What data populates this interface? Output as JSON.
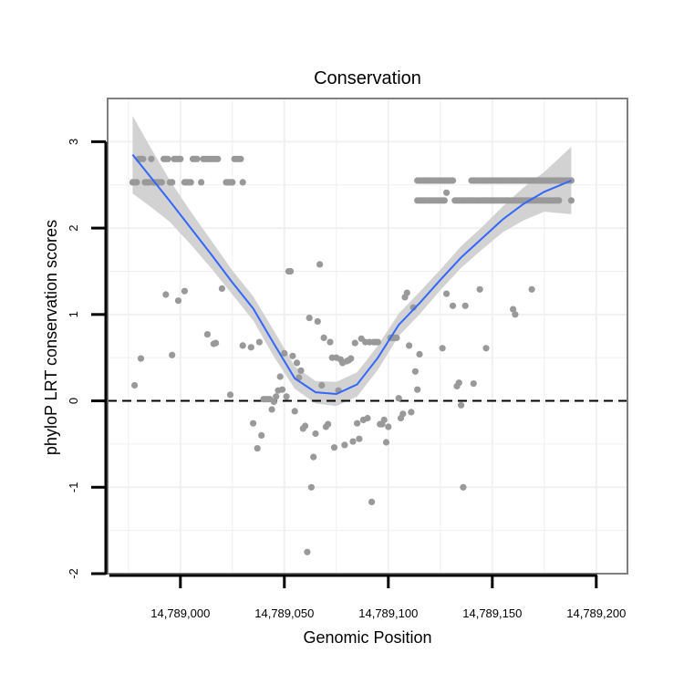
{
  "chart_data": {
    "type": "scatter",
    "title": "Conservation",
    "xlabel": "Genomic Position",
    "ylabel": "phyloP LRT conservation scores",
    "xlim": [
      14788965,
      14789215
    ],
    "ylim": [
      -2,
      3.5
    ],
    "xticks": [
      14789000,
      14789050,
      14789100,
      14789150,
      14789200
    ],
    "xtick_labels": [
      "14,789,000",
      "14,789,050",
      "14,789,100",
      "14,789,150",
      "14,789,200"
    ],
    "yticks": [
      -2,
      -1,
      0,
      1,
      2,
      3
    ],
    "ytick_labels": [
      "-2",
      "-1",
      "0",
      "1",
      "2",
      "3"
    ],
    "reference_line": {
      "y": 0,
      "style": "dashed"
    },
    "colors": {
      "points": "#999999",
      "smooth_line": "#3366ff",
      "ribbon": "#d2d2d2",
      "grid": "#f0f0f0",
      "panel_border": "#7f7f7f",
      "reference_line": "#000000"
    },
    "points": [
      [
        14788977,
        2.53
      ],
      [
        14788978,
        2.53
      ],
      [
        14788979,
        2.53
      ],
      [
        14788980,
        2.8
      ],
      [
        14788981,
        2.8
      ],
      [
        14788982,
        2.8
      ],
      [
        14788983,
        2.53
      ],
      [
        14788984,
        2.53
      ],
      [
        14788985,
        2.53
      ],
      [
        14788986,
        2.8
      ],
      [
        14788987,
        2.53
      ],
      [
        14788988,
        2.53
      ],
      [
        14788989,
        2.53
      ],
      [
        14788990,
        2.53
      ],
      [
        14788991,
        2.53
      ],
      [
        14788992,
        2.8
      ],
      [
        14788993,
        2.8
      ],
      [
        14788994,
        2.8
      ],
      [
        14788995,
        2.53
      ],
      [
        14788996,
        2.53
      ],
      [
        14788997,
        2.8
      ],
      [
        14788998,
        2.8
      ],
      [
        14788999,
        2.8
      ],
      [
        14789000,
        2.8
      ],
      [
        14789002,
        2.53
      ],
      [
        14789003,
        2.53
      ],
      [
        14789004,
        2.53
      ],
      [
        14789005,
        2.53
      ],
      [
        14789006,
        2.8
      ],
      [
        14789007,
        2.8
      ],
      [
        14789008,
        2.8
      ],
      [
        14789010,
        2.53
      ],
      [
        14789011,
        2.8
      ],
      [
        14789012,
        2.8
      ],
      [
        14789013,
        2.8
      ],
      [
        14789014,
        2.8
      ],
      [
        14789015,
        2.8
      ],
      [
        14789016,
        2.8
      ],
      [
        14789017,
        2.8
      ],
      [
        14789018,
        2.8
      ],
      [
        14789022,
        2.53
      ],
      [
        14789023,
        2.53
      ],
      [
        14789024,
        2.53
      ],
      [
        14789025,
        2.53
      ],
      [
        14789026,
        2.8
      ],
      [
        14789027,
        2.8
      ],
      [
        14789028,
        2.8
      ],
      [
        14789029,
        2.8
      ],
      [
        14789030,
        2.53
      ],
      [
        14788978,
        0.18
      ],
      [
        14788981,
        0.49
      ],
      [
        14788993,
        1.23
      ],
      [
        14788996,
        0.53
      ],
      [
        14788999,
        1.16
      ],
      [
        14789002,
        1.27
      ],
      [
        14789013,
        0.77
      ],
      [
        14789016,
        0.66
      ],
      [
        14789017,
        0.67
      ],
      [
        14789020,
        1.3
      ],
      [
        14789024,
        0.07
      ],
      [
        14789030,
        0.64
      ],
      [
        14789034,
        0.62
      ],
      [
        14789035,
        -0.26
      ],
      [
        14789037,
        -0.55
      ],
      [
        14789038,
        0.68
      ],
      [
        14789039,
        -0.4
      ],
      [
        14789040,
        0.02
      ],
      [
        14789041,
        0.02
      ],
      [
        14789042,
        0.02
      ],
      [
        14789043,
        0.02
      ],
      [
        14789044,
        -0.1
      ],
      [
        14789045,
        -0.01
      ],
      [
        14789046,
        0.05
      ],
      [
        14789047,
        0.12
      ],
      [
        14789048,
        0.28
      ],
      [
        14789049,
        0.13
      ],
      [
        14789050,
        0.55
      ],
      [
        14789051,
        0.05
      ],
      [
        14789052,
        1.5
      ],
      [
        14789053,
        1.5
      ],
      [
        14789054,
        0.52
      ],
      [
        14789055,
        -0.12
      ],
      [
        14789056,
        0.44
      ],
      [
        14789057,
        0.27
      ],
      [
        14789058,
        0.35
      ],
      [
        14789059,
        -0.32
      ],
      [
        14789060,
        -0.29
      ],
      [
        14789061,
        -1.75
      ],
      [
        14789062,
        0.96
      ],
      [
        14789063,
        -1.0
      ],
      [
        14789064,
        -0.65
      ],
      [
        14789065,
        -0.38
      ],
      [
        14789066,
        0.92
      ],
      [
        14789067,
        1.58
      ],
      [
        14789068,
        0.18
      ],
      [
        14789069,
        0.73
      ],
      [
        14789070,
        -0.3
      ],
      [
        14789071,
        -0.27
      ],
      [
        14789072,
        0.68
      ],
      [
        14789073,
        0.5
      ],
      [
        14789074,
        -0.54
      ],
      [
        14789075,
        0.5
      ],
      [
        14789076,
        0.12
      ],
      [
        14789077,
        0.48
      ],
      [
        14789078,
        0.44
      ],
      [
        14789079,
        -0.51
      ],
      [
        14789080,
        0.46
      ],
      [
        14789081,
        0.47
      ],
      [
        14789082,
        0.49
      ],
      [
        14789083,
        -0.47
      ],
      [
        14789084,
        0.67
      ],
      [
        14789085,
        -0.26
      ],
      [
        14789086,
        -0.44
      ],
      [
        14789087,
        0.72
      ],
      [
        14789088,
        -0.22
      ],
      [
        14789089,
        0.68
      ],
      [
        14789090,
        -0.2
      ],
      [
        14789091,
        0.68
      ],
      [
        14789092,
        -1.17
      ],
      [
        14789093,
        0.68
      ],
      [
        14789094,
        0.68
      ],
      [
        14789095,
        0.68
      ],
      [
        14789096,
        -0.27
      ],
      [
        14789097,
        -0.27
      ],
      [
        14789098,
        -0.22
      ],
      [
        14789099,
        -0.48
      ],
      [
        14789100,
        -0.3
      ],
      [
        14789101,
        0.73
      ],
      [
        14789102,
        0.73
      ],
      [
        14789103,
        0.73
      ],
      [
        14789104,
        0.73
      ],
      [
        14789105,
        0.03
      ],
      [
        14789106,
        -0.2
      ],
      [
        14789107,
        -0.15
      ],
      [
        14789108,
        1.2
      ],
      [
        14789109,
        1.25
      ],
      [
        14789110,
        0.64
      ],
      [
        14789111,
        -0.13
      ],
      [
        14789112,
        1.08
      ],
      [
        14789113,
        0.34
      ],
      [
        14789114,
        0.13
      ],
      [
        14789115,
        0.54
      ],
      [
        14789126,
        0.61
      ],
      [
        14789128,
        1.24
      ],
      [
        14789131,
        1.1
      ],
      [
        14789133,
        0.17
      ],
      [
        14789134,
        0.21
      ],
      [
        14789135,
        -0.05
      ],
      [
        14789136,
        -1.0
      ],
      [
        14789137,
        1.1
      ],
      [
        14789141,
        0.2
      ],
      [
        14789144,
        1.29
      ],
      [
        14789147,
        0.61
      ],
      [
        14789160,
        1.06
      ],
      [
        14789161,
        1.0
      ],
      [
        14789169,
        1.29
      ],
      [
        14789114,
        2.55
      ],
      [
        14789115,
        2.55
      ],
      [
        14789116,
        2.55
      ],
      [
        14789117,
        2.55
      ],
      [
        14789118,
        2.55
      ],
      [
        14789119,
        2.55
      ],
      [
        14789120,
        2.55
      ],
      [
        14789121,
        2.55
      ],
      [
        14789122,
        2.55
      ],
      [
        14789123,
        2.55
      ],
      [
        14789124,
        2.55
      ],
      [
        14789125,
        2.55
      ],
      [
        14789126,
        2.55
      ],
      [
        14789127,
        2.55
      ],
      [
        14789128,
        2.55
      ],
      [
        14789129,
        2.55
      ],
      [
        14789130,
        2.55
      ],
      [
        14789131,
        2.55
      ],
      [
        14789140,
        2.55
      ],
      [
        14789141,
        2.55
      ],
      [
        14789142,
        2.55
      ],
      [
        14789143,
        2.55
      ],
      [
        14789144,
        2.55
      ],
      [
        14789145,
        2.55
      ],
      [
        14789146,
        2.55
      ],
      [
        14789147,
        2.55
      ],
      [
        14789148,
        2.55
      ],
      [
        14789149,
        2.55
      ],
      [
        14789150,
        2.55
      ],
      [
        14789151,
        2.55
      ],
      [
        14789152,
        2.55
      ],
      [
        14789153,
        2.55
      ],
      [
        14789154,
        2.55
      ],
      [
        14789155,
        2.55
      ],
      [
        14789156,
        2.55
      ],
      [
        14789157,
        2.55
      ],
      [
        14789158,
        2.55
      ],
      [
        14789159,
        2.55
      ],
      [
        14789160,
        2.55
      ],
      [
        14789161,
        2.55
      ],
      [
        14789162,
        2.55
      ],
      [
        14789163,
        2.55
      ],
      [
        14789164,
        2.55
      ],
      [
        14789165,
        2.55
      ],
      [
        14789166,
        2.55
      ],
      [
        14789167,
        2.55
      ],
      [
        14789168,
        2.55
      ],
      [
        14789169,
        2.55
      ],
      [
        14789170,
        2.55
      ],
      [
        14789171,
        2.55
      ],
      [
        14789172,
        2.55
      ],
      [
        14789173,
        2.55
      ],
      [
        14789174,
        2.55
      ],
      [
        14789175,
        2.55
      ],
      [
        14789176,
        2.55
      ],
      [
        14789177,
        2.55
      ],
      [
        14789178,
        2.55
      ],
      [
        14789179,
        2.55
      ],
      [
        14789180,
        2.55
      ],
      [
        14789181,
        2.55
      ],
      [
        14789182,
        2.55
      ],
      [
        14789183,
        2.55
      ],
      [
        14789184,
        2.55
      ],
      [
        14789185,
        2.55
      ],
      [
        14789186,
        2.55
      ],
      [
        14789187,
        2.55
      ],
      [
        14789188,
        2.55
      ],
      [
        14789114,
        2.32
      ],
      [
        14789115,
        2.32
      ],
      [
        14789116,
        2.32
      ],
      [
        14789117,
        2.32
      ],
      [
        14789118,
        2.32
      ],
      [
        14789119,
        2.32
      ],
      [
        14789120,
        2.32
      ],
      [
        14789121,
        2.32
      ],
      [
        14789122,
        2.32
      ],
      [
        14789123,
        2.32
      ],
      [
        14789124,
        2.32
      ],
      [
        14789125,
        2.32
      ],
      [
        14789126,
        2.32
      ],
      [
        14789127,
        2.32
      ],
      [
        14789128,
        2.41
      ],
      [
        14789132,
        2.32
      ],
      [
        14789133,
        2.32
      ],
      [
        14789134,
        2.32
      ],
      [
        14789135,
        2.32
      ],
      [
        14789136,
        2.32
      ],
      [
        14789137,
        2.32
      ],
      [
        14789138,
        2.32
      ],
      [
        14789139,
        2.32
      ],
      [
        14789140,
        2.32
      ],
      [
        14789141,
        2.32
      ],
      [
        14789142,
        2.32
      ],
      [
        14789143,
        2.32
      ],
      [
        14789144,
        2.32
      ],
      [
        14789145,
        2.32
      ],
      [
        14789146,
        2.32
      ],
      [
        14789147,
        2.32
      ],
      [
        14789148,
        2.32
      ],
      [
        14789149,
        2.32
      ],
      [
        14789150,
        2.32
      ],
      [
        14789151,
        2.32
      ],
      [
        14789152,
        2.32
      ],
      [
        14789153,
        2.32
      ],
      [
        14789154,
        2.32
      ],
      [
        14789155,
        2.32
      ],
      [
        14789156,
        2.32
      ],
      [
        14789157,
        2.32
      ],
      [
        14789158,
        2.32
      ],
      [
        14789159,
        2.32
      ],
      [
        14789160,
        2.32
      ],
      [
        14789161,
        2.32
      ],
      [
        14789162,
        2.32
      ],
      [
        14789163,
        2.32
      ],
      [
        14789164,
        2.32
      ],
      [
        14789165,
        2.32
      ],
      [
        14789166,
        2.32
      ],
      [
        14789167,
        2.32
      ],
      [
        14789168,
        2.32
      ],
      [
        14789169,
        2.32
      ],
      [
        14789170,
        2.32
      ],
      [
        14789171,
        2.32
      ],
      [
        14789172,
        2.32
      ],
      [
        14789173,
        2.32
      ],
      [
        14789174,
        2.32
      ],
      [
        14789175,
        2.32
      ],
      [
        14789176,
        2.32
      ],
      [
        14789177,
        2.32
      ],
      [
        14789178,
        2.32
      ],
      [
        14789179,
        2.32
      ],
      [
        14789180,
        2.32
      ],
      [
        14789181,
        2.32
      ],
      [
        14789182,
        2.32
      ],
      [
        14789188,
        2.32
      ]
    ],
    "smooth": {
      "x": [
        14788977,
        14788985,
        14788995,
        14789005,
        14789015,
        14789025,
        14789035,
        14789045,
        14789055,
        14789065,
        14789075,
        14789085,
        14789095,
        14789105,
        14789115,
        14789125,
        14789135,
        14789145,
        14789155,
        14789165,
        14789175,
        14789188
      ],
      "y": [
        2.85,
        2.61,
        2.31,
        2.0,
        1.69,
        1.37,
        1.07,
        0.66,
        0.26,
        0.1,
        0.08,
        0.19,
        0.5,
        0.88,
        1.13,
        1.4,
        1.66,
        1.88,
        2.1,
        2.28,
        2.42,
        2.55
      ],
      "lower": [
        2.4,
        2.26,
        2.07,
        1.81,
        1.53,
        1.23,
        0.93,
        0.51,
        0.14,
        -0.03,
        -0.06,
        0.05,
        0.36,
        0.75,
        1.0,
        1.28,
        1.54,
        1.75,
        1.95,
        2.09,
        2.19,
        2.16
      ],
      "upper": [
        3.3,
        2.96,
        2.55,
        2.19,
        1.85,
        1.51,
        1.21,
        0.81,
        0.4,
        0.23,
        0.22,
        0.33,
        0.64,
        1.01,
        1.26,
        1.52,
        1.79,
        2.01,
        2.25,
        2.47,
        2.65,
        2.94
      ]
    }
  }
}
